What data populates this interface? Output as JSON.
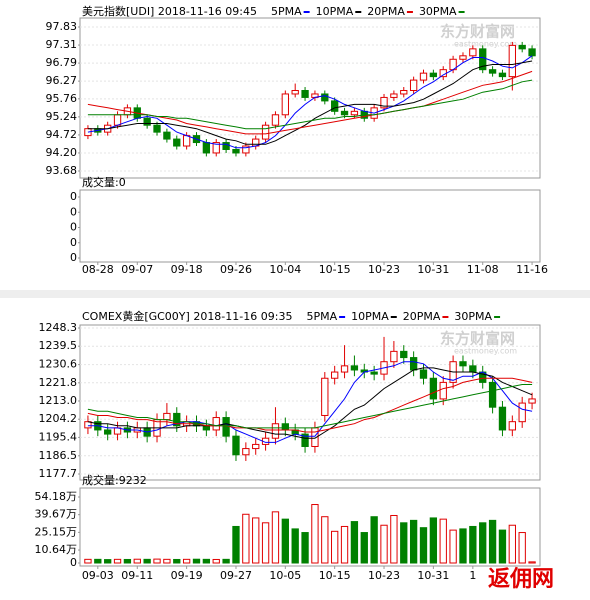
{
  "chart_data": [
    {
      "type": "candlestick",
      "title": "美元指数[UDI] 2018-11-16 09:45",
      "categories": [
        null,
        "08-28",
        null,
        null,
        null,
        "09-07",
        null,
        null,
        null,
        null,
        "09-18",
        null,
        null,
        null,
        null,
        "09-26",
        null,
        null,
        null,
        null,
        "10-04",
        null,
        null,
        null,
        null,
        "10-15",
        null,
        null,
        null,
        null,
        "10-23",
        null,
        null,
        null,
        null,
        "10-31",
        null,
        null,
        null,
        null,
        "11-08",
        null,
        null,
        null,
        null,
        "11-16"
      ],
      "open": [
        94.7,
        94.9,
        94.8,
        95.0,
        95.3,
        95.5,
        95.2,
        95.0,
        94.8,
        94.6,
        94.4,
        94.7,
        94.5,
        94.2,
        94.5,
        94.3,
        94.2,
        94.4,
        94.6,
        95.0,
        95.3,
        95.9,
        96.0,
        95.8,
        95.9,
        95.7,
        95.4,
        95.3,
        95.4,
        95.2,
        95.5,
        95.8,
        95.9,
        96.0,
        96.3,
        96.5,
        96.4,
        96.6,
        96.9,
        97.0,
        97.2,
        96.6,
        96.5,
        96.4,
        97.3,
        97.2
      ],
      "high": [
        95.0,
        95.0,
        95.1,
        95.4,
        95.6,
        95.6,
        95.3,
        95.1,
        94.9,
        94.7,
        94.8,
        94.8,
        94.6,
        94.6,
        94.6,
        94.4,
        94.5,
        94.7,
        95.1,
        95.4,
        96.0,
        96.2,
        96.1,
        96.0,
        96.0,
        95.8,
        95.5,
        95.5,
        95.5,
        95.6,
        95.9,
        96.0,
        96.1,
        96.4,
        96.6,
        96.6,
        96.7,
        97.0,
        97.1,
        97.3,
        97.3,
        96.7,
        96.6,
        97.4,
        97.4,
        97.3
      ],
      "low": [
        94.6,
        94.7,
        94.7,
        94.9,
        95.2,
        95.1,
        94.9,
        94.7,
        94.5,
        94.3,
        94.3,
        94.4,
        94.1,
        94.1,
        94.2,
        94.1,
        94.1,
        94.3,
        94.5,
        94.9,
        95.2,
        95.8,
        95.7,
        95.7,
        95.6,
        95.3,
        95.2,
        95.2,
        95.1,
        95.1,
        95.4,
        95.7,
        95.8,
        95.9,
        96.2,
        96.3,
        96.3,
        96.5,
        96.8,
        96.9,
        96.5,
        96.4,
        96.3,
        96.0,
        97.1,
        96.9
      ],
      "close": [
        94.9,
        94.8,
        95.0,
        95.3,
        95.5,
        95.2,
        95.0,
        94.8,
        94.6,
        94.4,
        94.7,
        94.5,
        94.2,
        94.5,
        94.3,
        94.2,
        94.4,
        94.6,
        95.0,
        95.3,
        95.9,
        96.0,
        95.8,
        95.9,
        95.7,
        95.4,
        95.3,
        95.4,
        95.2,
        95.5,
        95.8,
        95.9,
        96.0,
        96.3,
        96.5,
        96.4,
        96.6,
        96.9,
        97.0,
        97.2,
        96.6,
        96.5,
        96.4,
        97.3,
        97.2,
        97.0
      ],
      "up_color": "#e00000",
      "down_color": "#008000",
      "series": [
        {
          "name": "5PMA",
          "color": "#0000ff",
          "values": [
            94.8,
            94.85,
            94.9,
            95.0,
            95.1,
            95.2,
            95.25,
            95.2,
            95.0,
            94.8,
            94.7,
            94.6,
            94.5,
            94.45,
            94.45,
            94.35,
            94.35,
            94.4,
            94.5,
            94.7,
            95.0,
            95.35,
            95.6,
            95.8,
            95.85,
            95.75,
            95.6,
            95.5,
            95.4,
            95.35,
            95.45,
            95.55,
            95.7,
            95.9,
            96.1,
            96.25,
            96.45,
            96.6,
            96.8,
            96.95,
            96.95,
            96.85,
            96.7,
            96.65,
            96.8,
            97.0
          ]
        },
        {
          "name": "10PMA",
          "color": "#000000",
          "values": [
            94.9,
            94.9,
            94.9,
            94.95,
            95.0,
            95.05,
            95.05,
            95.05,
            95.05,
            95.0,
            94.95,
            94.9,
            94.8,
            94.7,
            94.6,
            94.55,
            94.45,
            94.45,
            94.45,
            94.55,
            94.7,
            94.85,
            95.0,
            95.2,
            95.35,
            95.5,
            95.55,
            95.6,
            95.6,
            95.6,
            95.55,
            95.55,
            95.6,
            95.65,
            95.75,
            95.9,
            96.05,
            96.2,
            96.4,
            96.6,
            96.7,
            96.75,
            96.75,
            96.75,
            96.8,
            96.85
          ]
        },
        {
          "name": "20PMA",
          "color": "#e00000",
          "values": [
            95.6,
            95.55,
            95.5,
            95.45,
            95.4,
            95.35,
            95.3,
            95.25,
            95.2,
            95.15,
            95.05,
            95.0,
            94.95,
            94.9,
            94.85,
            94.8,
            94.75,
            94.75,
            94.75,
            94.8,
            94.85,
            94.9,
            94.95,
            95.0,
            95.05,
            95.1,
            95.15,
            95.2,
            95.25,
            95.3,
            95.35,
            95.4,
            95.45,
            95.5,
            95.55,
            95.65,
            95.75,
            95.85,
            95.95,
            96.05,
            96.15,
            96.2,
            96.25,
            96.35,
            96.45,
            96.55
          ]
        },
        {
          "name": "30PMA",
          "color": "#008000",
          "values": [
            95.3,
            95.3,
            95.3,
            95.3,
            95.3,
            95.3,
            95.3,
            95.25,
            95.25,
            95.2,
            95.2,
            95.15,
            95.1,
            95.05,
            95.0,
            94.95,
            94.9,
            94.9,
            94.9,
            94.95,
            95.0,
            95.05,
            95.1,
            95.15,
            95.2,
            95.2,
            95.25,
            95.25,
            95.3,
            95.3,
            95.35,
            95.4,
            95.45,
            95.5,
            95.55,
            95.6,
            95.65,
            95.7,
            95.75,
            95.85,
            95.95,
            96.0,
            96.05,
            96.15,
            96.25,
            96.3
          ]
        }
      ],
      "ylim": [
        93.68,
        97.83
      ],
      "yticks": [
        93.68,
        {
          "value": 94.2,
          "label": "94.20"
        },
        94.72,
        95.24,
        95.76,
        96.27,
        96.79,
        97.31,
        97.83
      ],
      "grid": true,
      "volume_title": "成交量:0",
      "volume_axis_labels": [
        "0",
        "0",
        "0",
        "0",
        "0"
      ]
    },
    {
      "type": "candlestick",
      "title": "COMEX黄金[GC00Y] 2018-11-16 09:35",
      "categories": [
        null,
        "09-03",
        null,
        null,
        null,
        "09-11",
        null,
        null,
        null,
        null,
        "09-19",
        null,
        null,
        null,
        null,
        "09-27",
        null,
        null,
        null,
        null,
        "10-05",
        null,
        null,
        null,
        null,
        "10-15",
        null,
        null,
        null,
        null,
        "10-23",
        null,
        null,
        null,
        null,
        "10-31",
        null,
        null,
        null,
        "1",
        null,
        null,
        null,
        null,
        null,
        null
      ],
      "open": [
        1200,
        1203,
        1199,
        1197,
        1200,
        1198,
        1200,
        1196,
        1204,
        1207,
        1201,
        1203,
        1201,
        1199,
        1205,
        1196,
        1187,
        1190,
        1192,
        1195,
        1202,
        1199,
        1197,
        1191,
        1206,
        1224,
        1227,
        1230,
        1228,
        1227,
        1226,
        1232,
        1237,
        1234,
        1228,
        1224,
        1214,
        1222,
        1232,
        1230,
        1227,
        1222,
        1210,
        1199,
        1203,
        1212
      ],
      "high": [
        1206,
        1206,
        1202,
        1203,
        1203,
        1203,
        1203,
        1207,
        1212,
        1210,
        1206,
        1206,
        1204,
        1208,
        1208,
        1199,
        1193,
        1195,
        1198,
        1210,
        1205,
        1202,
        1200,
        1203,
        1227,
        1230,
        1240,
        1235,
        1231,
        1230,
        1244,
        1242,
        1240,
        1237,
        1231,
        1227,
        1225,
        1235,
        1235,
        1233,
        1230,
        1225,
        1213,
        1206,
        1215,
        1217
      ],
      "low": [
        1197,
        1196,
        1194,
        1194,
        1195,
        1195,
        1193,
        1193,
        1201,
        1198,
        1198,
        1198,
        1196,
        1196,
        1193,
        1184,
        1184,
        1187,
        1189,
        1192,
        1196,
        1194,
        1188,
        1188,
        1203,
        1221,
        1224,
        1225,
        1224,
        1223,
        1223,
        1229,
        1231,
        1225,
        1221,
        1211,
        1211,
        1219,
        1227,
        1224,
        1219,
        1207,
        1196,
        1196,
        1200,
        1209
      ],
      "close": [
        1203,
        1199,
        1197,
        1200,
        1198,
        1200,
        1196,
        1204,
        1207,
        1201,
        1203,
        1201,
        1199,
        1205,
        1196,
        1187,
        1190,
        1192,
        1195,
        1202,
        1199,
        1197,
        1191,
        1200,
        1224,
        1227,
        1230,
        1228,
        1227,
        1226,
        1232,
        1237,
        1234,
        1228,
        1224,
        1214,
        1222,
        1232,
        1230,
        1227,
        1222,
        1210,
        1199,
        1203,
        1212,
        1214
      ],
      "up_color": "#e00000",
      "down_color": "#008000",
      "series": [
        {
          "name": "5PMA",
          "color": "#0000ff",
          "values": [
            1201,
            1201,
            1200,
            1200,
            1199,
            1199,
            1198,
            1199,
            1201,
            1202,
            1203,
            1203,
            1202,
            1201,
            1202,
            1199,
            1197,
            1195,
            1193,
            1193,
            1195,
            1197,
            1196,
            1196,
            1202,
            1208,
            1214,
            1222,
            1227,
            1228,
            1229,
            1230,
            1232,
            1232,
            1231,
            1227,
            1224,
            1223,
            1225,
            1225,
            1227,
            1224,
            1218,
            1212,
            1209,
            1208
          ]
        },
        {
          "name": "10PMA",
          "color": "#000000",
          "values": [
            1203,
            1202,
            1202,
            1201,
            1201,
            1200,
            1200,
            1200,
            1200,
            1200,
            1201,
            1201,
            1201,
            1201,
            1202,
            1201,
            1200,
            1199,
            1198,
            1197,
            1197,
            1196,
            1195,
            1195,
            1198,
            1201,
            1205,
            1209,
            1211,
            1215,
            1219,
            1222,
            1225,
            1228,
            1229,
            1229,
            1228,
            1227,
            1227,
            1227,
            1226,
            1225,
            1222,
            1220,
            1218,
            1216
          ]
        },
        {
          "name": "20PMA",
          "color": "#e00000",
          "values": [
            1207,
            1206,
            1206,
            1205,
            1205,
            1204,
            1204,
            1203,
            1203,
            1202,
            1202,
            1202,
            1201,
            1201,
            1201,
            1200,
            1200,
            1200,
            1199,
            1199,
            1199,
            1199,
            1198,
            1198,
            1199,
            1200,
            1201,
            1202,
            1204,
            1205,
            1207,
            1209,
            1211,
            1213,
            1215,
            1217,
            1219,
            1220,
            1222,
            1223,
            1224,
            1224,
            1224,
            1224,
            1223,
            1222
          ]
        },
        {
          "name": "30PMA",
          "color": "#008000",
          "values": [
            1209,
            1208,
            1208,
            1207,
            1206,
            1205,
            1205,
            1204,
            1204,
            1203,
            1203,
            1202,
            1202,
            1201,
            1201,
            1201,
            1200,
            1200,
            1200,
            1200,
            1200,
            1200,
            1200,
            1200,
            1201,
            1202,
            1203,
            1204,
            1205,
            1206,
            1207,
            1208,
            1209,
            1210,
            1211,
            1212,
            1213,
            1214,
            1215,
            1216,
            1217,
            1218,
            1219,
            1220,
            1221,
            1221
          ]
        }
      ],
      "ylim": [
        1177.7,
        1248.3
      ],
      "yticks": [
        1177.7,
        1186.5,
        1195.4,
        1204.2,
        {
          "value": 1213,
          "label": "1213.0"
        },
        1221.8,
        1230.6,
        1239.5,
        1248.3
      ],
      "grid": true,
      "volume_title": "成交量:9232",
      "volume": [
        30000,
        30000,
        28000,
        30000,
        29000,
        31000,
        30000,
        32000,
        30000,
        29000,
        30000,
        31000,
        30000,
        29000,
        30000,
        300000,
        400000,
        370000,
        330000,
        420000,
        360000,
        280000,
        250000,
        480000,
        380000,
        260000,
        300000,
        340000,
        250000,
        380000,
        310000,
        390000,
        330000,
        350000,
        290000,
        370000,
        360000,
        270000,
        280000,
        300000,
        330000,
        350000,
        270000,
        310000,
        250000,
        9232
      ],
      "volume_lim": [
        0,
        541800
      ],
      "volume_ticks": [
        0,
        {
          "value": 106400,
          "label": "10.64万"
        },
        {
          "value": 251500,
          "label": "25.15万"
        },
        {
          "value": 396700,
          "label": "39.67万"
        },
        {
          "value": 541800,
          "label": "54.18万"
        }
      ]
    }
  ],
  "watermarks": [
    "东方财富网",
    "eastmoney.com"
  ],
  "site_watermark": "返佣网"
}
